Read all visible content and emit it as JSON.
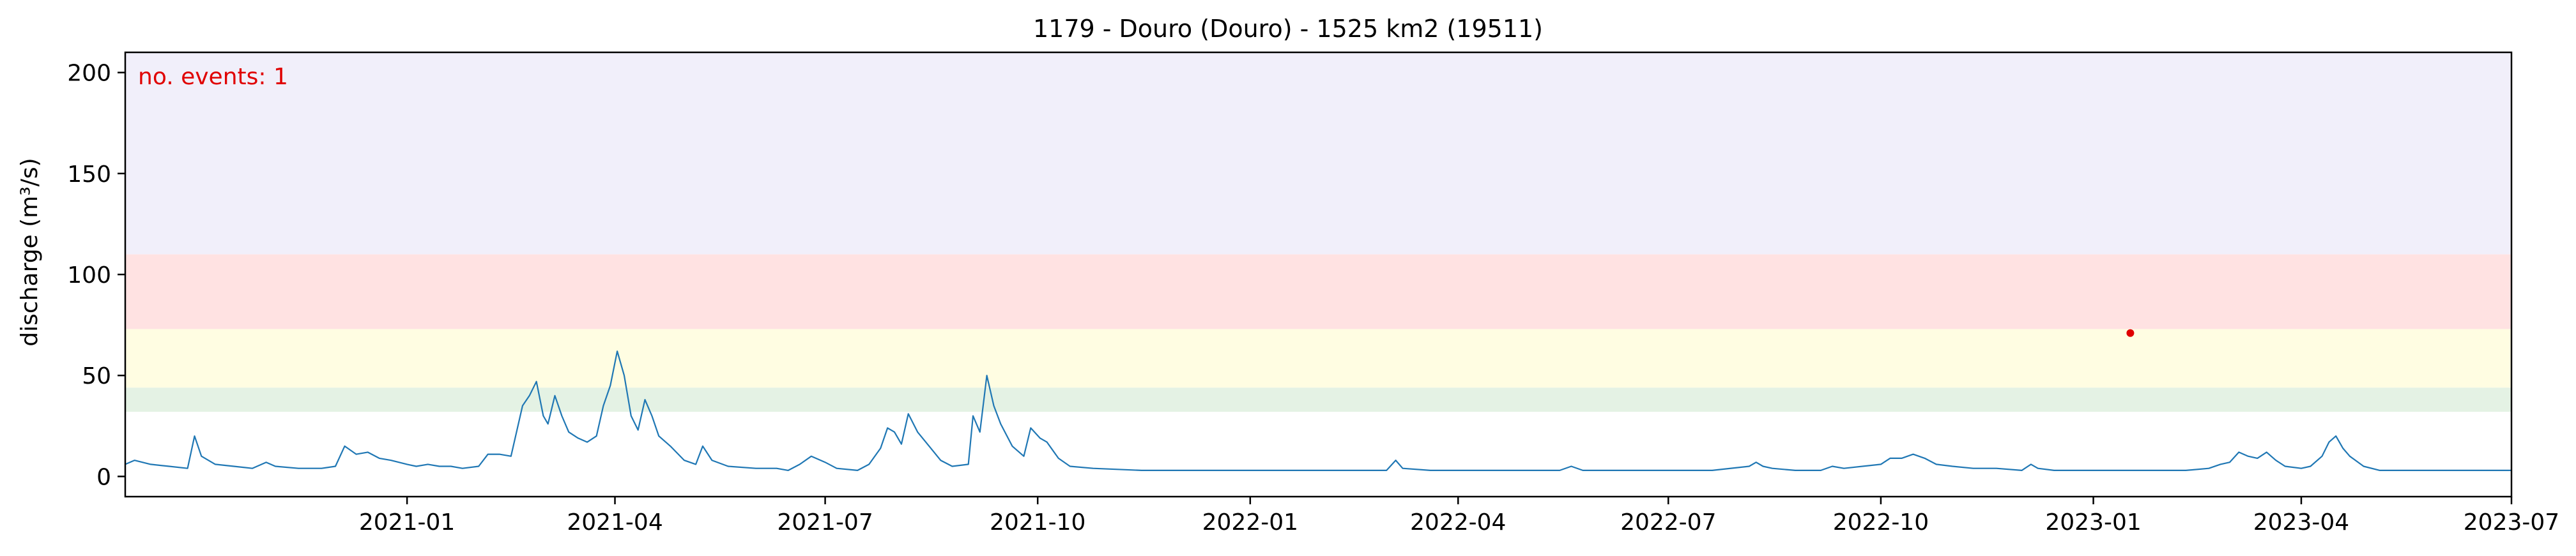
{
  "chart_data": {
    "type": "line",
    "title": "1179 - Douro (Douro) - 1525 km2 (19511)",
    "xlabel": "",
    "ylabel": "discharge (m³/s)",
    "annotation": "no. events: 1",
    "xlim": [
      "2020-09-01",
      "2023-07-01"
    ],
    "ylim": [
      -10,
      210
    ],
    "x_ticks": [
      "2021-01",
      "2021-04",
      "2021-07",
      "2021-10",
      "2022-01",
      "2022-04",
      "2022-07",
      "2022-10",
      "2023-01",
      "2023-04",
      "2023-07"
    ],
    "y_ticks": [
      0,
      50,
      100,
      150,
      200
    ],
    "grid": false,
    "bands": [
      {
        "from": 32,
        "to": 44,
        "color": "#e4f2e4"
      },
      {
        "from": 44,
        "to": 73,
        "color": "#fffde2"
      },
      {
        "from": 73,
        "to": 110,
        "color": "#ffe2e2"
      },
      {
        "from": 110,
        "to": 210,
        "color": "#f1effa"
      }
    ],
    "line_color": "#1f77b4",
    "event_color": "#e00000",
    "events": [
      {
        "x": "2023-01-17",
        "y": 71
      }
    ],
    "series": [
      {
        "values": [
          [
            "2020-09-01",
            6
          ],
          [
            "2020-09-05",
            8
          ],
          [
            "2020-09-12",
            6
          ],
          [
            "2020-09-20",
            5
          ],
          [
            "2020-09-28",
            4
          ],
          [
            "2020-10-01",
            20
          ],
          [
            "2020-10-04",
            10
          ],
          [
            "2020-10-10",
            6
          ],
          [
            "2020-10-18",
            5
          ],
          [
            "2020-10-26",
            4
          ],
          [
            "2020-11-01",
            7
          ],
          [
            "2020-11-05",
            5
          ],
          [
            "2020-11-15",
            4
          ],
          [
            "2020-11-25",
            4
          ],
          [
            "2020-12-01",
            5
          ],
          [
            "2020-12-05",
            15
          ],
          [
            "2020-12-10",
            11
          ],
          [
            "2020-12-15",
            12
          ],
          [
            "2020-12-20",
            9
          ],
          [
            "2020-12-25",
            8
          ],
          [
            "2021-01-01",
            6
          ],
          [
            "2021-01-05",
            5
          ],
          [
            "2021-01-10",
            6
          ],
          [
            "2021-01-15",
            5
          ],
          [
            "2021-01-20",
            5
          ],
          [
            "2021-01-25",
            4
          ],
          [
            "2021-02-01",
            5
          ],
          [
            "2021-02-05",
            11
          ],
          [
            "2021-02-10",
            11
          ],
          [
            "2021-02-15",
            10
          ],
          [
            "2021-02-20",
            35
          ],
          [
            "2021-02-23",
            40
          ],
          [
            "2021-02-26",
            47
          ],
          [
            "2021-03-01",
            30
          ],
          [
            "2021-03-03",
            26
          ],
          [
            "2021-03-06",
            40
          ],
          [
            "2021-03-09",
            30
          ],
          [
            "2021-03-12",
            22
          ],
          [
            "2021-03-16",
            19
          ],
          [
            "2021-03-20",
            17
          ],
          [
            "2021-03-24",
            20
          ],
          [
            "2021-03-27",
            35
          ],
          [
            "2021-03-30",
            45
          ],
          [
            "2021-04-02",
            62
          ],
          [
            "2021-04-05",
            50
          ],
          [
            "2021-04-08",
            30
          ],
          [
            "2021-04-11",
            23
          ],
          [
            "2021-04-14",
            38
          ],
          [
            "2021-04-17",
            30
          ],
          [
            "2021-04-20",
            20
          ],
          [
            "2021-04-25",
            15
          ],
          [
            "2021-05-01",
            8
          ],
          [
            "2021-05-06",
            6
          ],
          [
            "2021-05-09",
            15
          ],
          [
            "2021-05-13",
            8
          ],
          [
            "2021-05-20",
            5
          ],
          [
            "2021-06-01",
            4
          ],
          [
            "2021-06-10",
            4
          ],
          [
            "2021-06-15",
            3
          ],
          [
            "2021-06-20",
            6
          ],
          [
            "2021-06-25",
            10
          ],
          [
            "2021-07-01",
            7
          ],
          [
            "2021-07-06",
            4
          ],
          [
            "2021-07-15",
            3
          ],
          [
            "2021-07-20",
            6
          ],
          [
            "2021-07-25",
            14
          ],
          [
            "2021-07-28",
            24
          ],
          [
            "2021-07-31",
            22
          ],
          [
            "2021-08-03",
            16
          ],
          [
            "2021-08-06",
            31
          ],
          [
            "2021-08-10",
            22
          ],
          [
            "2021-08-15",
            15
          ],
          [
            "2021-08-20",
            8
          ],
          [
            "2021-08-25",
            5
          ],
          [
            "2021-09-01",
            6
          ],
          [
            "2021-09-03",
            30
          ],
          [
            "2021-09-06",
            22
          ],
          [
            "2021-09-09",
            50
          ],
          [
            "2021-09-12",
            35
          ],
          [
            "2021-09-15",
            26
          ],
          [
            "2021-09-20",
            15
          ],
          [
            "2021-09-25",
            10
          ],
          [
            "2021-09-28",
            24
          ],
          [
            "2021-10-02",
            19
          ],
          [
            "2021-10-05",
            17
          ],
          [
            "2021-10-10",
            9
          ],
          [
            "2021-10-15",
            5
          ],
          [
            "2021-10-25",
            4
          ],
          [
            "2021-11-15",
            3
          ],
          [
            "2021-12-15",
            3
          ],
          [
            "2022-01-01",
            3
          ],
          [
            "2022-01-20",
            3
          ],
          [
            "2022-02-10",
            3
          ],
          [
            "2022-03-01",
            3
          ],
          [
            "2022-03-05",
            8
          ],
          [
            "2022-03-08",
            4
          ],
          [
            "2022-03-20",
            3
          ],
          [
            "2022-04-15",
            3
          ],
          [
            "2022-05-01",
            3
          ],
          [
            "2022-05-15",
            3
          ],
          [
            "2022-05-20",
            5
          ],
          [
            "2022-05-25",
            3
          ],
          [
            "2022-06-10",
            3
          ],
          [
            "2022-06-25",
            3
          ],
          [
            "2022-07-05",
            3
          ],
          [
            "2022-07-20",
            3
          ],
          [
            "2022-08-05",
            5
          ],
          [
            "2022-08-08",
            7
          ],
          [
            "2022-08-11",
            5
          ],
          [
            "2022-08-15",
            4
          ],
          [
            "2022-08-25",
            3
          ],
          [
            "2022-09-05",
            3
          ],
          [
            "2022-09-10",
            5
          ],
          [
            "2022-09-15",
            4
          ],
          [
            "2022-10-01",
            6
          ],
          [
            "2022-10-05",
            9
          ],
          [
            "2022-10-10",
            9
          ],
          [
            "2022-10-15",
            11
          ],
          [
            "2022-10-20",
            9
          ],
          [
            "2022-10-25",
            6
          ],
          [
            "2022-11-01",
            5
          ],
          [
            "2022-11-10",
            4
          ],
          [
            "2022-11-20",
            4
          ],
          [
            "2022-12-01",
            3
          ],
          [
            "2022-12-05",
            6
          ],
          [
            "2022-12-08",
            4
          ],
          [
            "2022-12-15",
            3
          ],
          [
            "2022-12-25",
            3
          ],
          [
            "2023-01-01",
            3
          ],
          [
            "2023-01-10",
            3
          ],
          [
            "2023-01-20",
            3
          ],
          [
            "2023-02-01",
            3
          ],
          [
            "2023-02-10",
            3
          ],
          [
            "2023-02-20",
            4
          ],
          [
            "2023-02-25",
            6
          ],
          [
            "2023-03-01",
            7
          ],
          [
            "2023-03-05",
            12
          ],
          [
            "2023-03-09",
            10
          ],
          [
            "2023-03-13",
            9
          ],
          [
            "2023-03-17",
            12
          ],
          [
            "2023-03-21",
            8
          ],
          [
            "2023-03-25",
            5
          ],
          [
            "2023-04-01",
            4
          ],
          [
            "2023-04-05",
            5
          ],
          [
            "2023-04-10",
            10
          ],
          [
            "2023-04-13",
            17
          ],
          [
            "2023-04-16",
            20
          ],
          [
            "2023-04-19",
            14
          ],
          [
            "2023-04-22",
            10
          ],
          [
            "2023-04-28",
            5
          ],
          [
            "2023-05-05",
            3
          ],
          [
            "2023-05-20",
            3
          ],
          [
            "2023-06-10",
            3
          ],
          [
            "2023-07-01",
            3
          ]
        ]
      }
    ]
  }
}
